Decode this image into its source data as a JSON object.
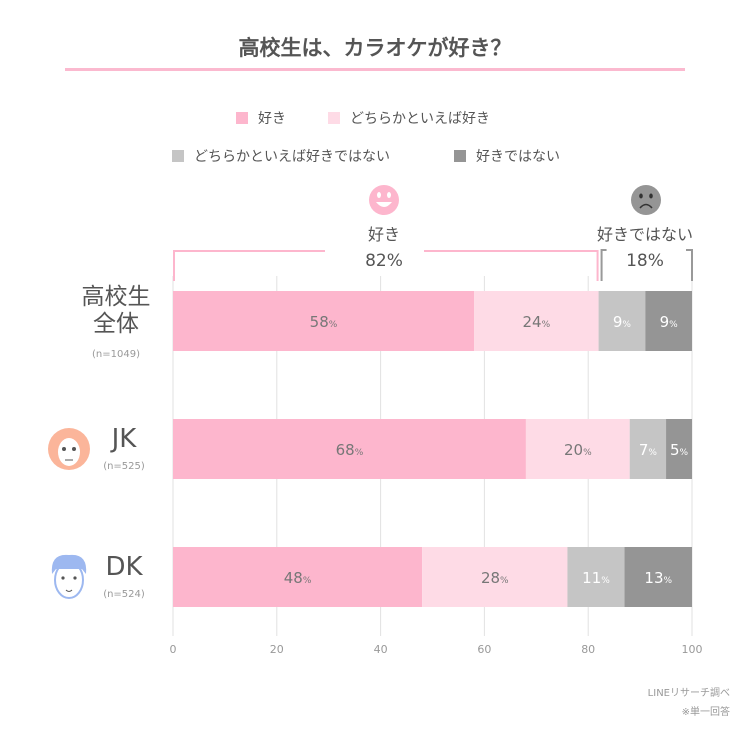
{
  "chart_data": {
    "type": "bar",
    "orientation": "horizontal",
    "stacked": true,
    "title": "高校生は、カラオケが好き？",
    "categories": [
      {
        "label": "高校生全体",
        "label_lines": [
          "高校生",
          "全体"
        ],
        "n": "(n=1049)",
        "icon": "none"
      },
      {
        "label": "JK",
        "label_lines": [
          "JK"
        ],
        "n": "(n=525)",
        "icon": "girl-face-icon"
      },
      {
        "label": "DK",
        "label_lines": [
          "DK"
        ],
        "n": "(n=524)",
        "icon": "boy-face-icon"
      }
    ],
    "series": [
      {
        "name": "好き",
        "color": "#fdb6cd",
        "values": [
          58,
          68,
          48
        ],
        "label_color": "#777"
      },
      {
        "name": "どちらかといえば好き",
        "color": "#fedbe6",
        "values": [
          24,
          20,
          28
        ],
        "label_color": "#777"
      },
      {
        "name": "どちらかといえば好きではない",
        "color": "#c5c5c5",
        "values": [
          9,
          7,
          11
        ],
        "label_color": "#fff"
      },
      {
        "name": "好きではない",
        "color": "#959595",
        "values": [
          9,
          5,
          13
        ],
        "label_color": "#fff"
      }
    ],
    "value_suffix": "%",
    "xlim": [
      0,
      100
    ],
    "xticks": [
      "0",
      "20",
      "40",
      "60",
      "80",
      "100"
    ],
    "grid": true,
    "legend_position": "top",
    "annotations": {
      "like": {
        "label": "好き",
        "value": "82%",
        "icon": "smile-icon",
        "color": "#fdb6cd"
      },
      "dislike": {
        "label": "好きではない",
        "value": "18%",
        "icon": "frown-icon",
        "color": "#959595"
      }
    }
  },
  "footer": {
    "source": "LINEリサーチ調べ",
    "note": "※単一回答"
  }
}
